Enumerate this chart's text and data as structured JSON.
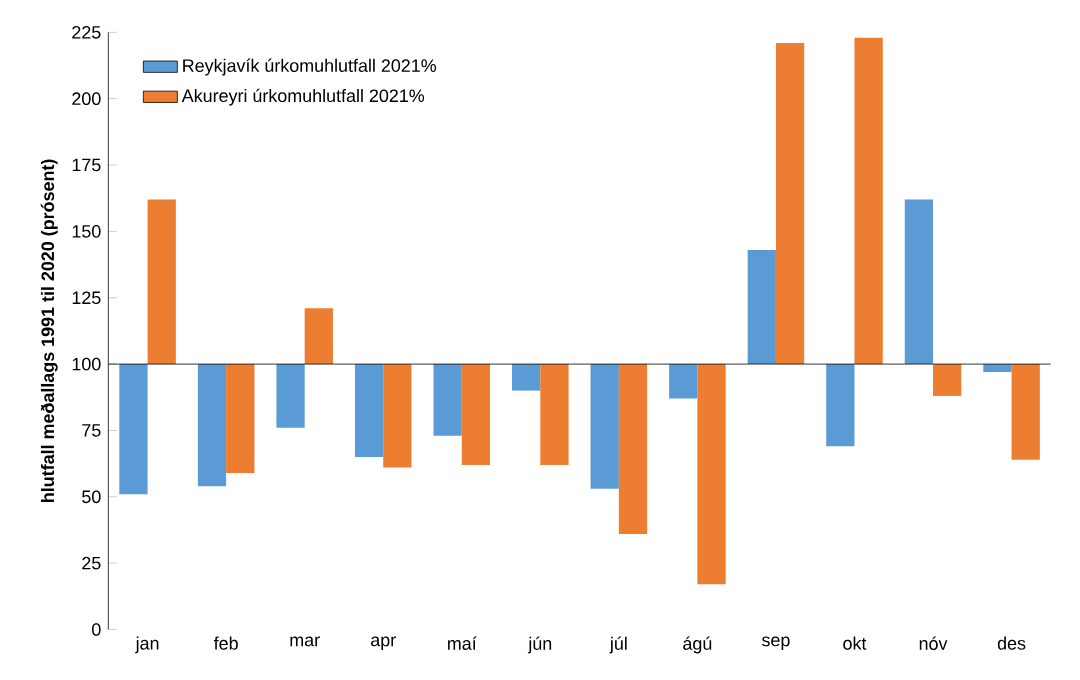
{
  "chart_data": {
    "type": "bar",
    "ylabel": "hlutfall  meðallags 1991 til 2020 (prósent)",
    "categories": [
      "jan",
      "feb",
      "mar",
      "apr",
      "maí",
      "jún",
      "júl",
      "ágú",
      "sep",
      "okt",
      "nóv",
      "des"
    ],
    "series": [
      {
        "name": "Reykjavík úrkomuhlutfall 2021%",
        "color": "#5b9bd5",
        "base": [
          100,
          100,
          100,
          100,
          100,
          100,
          100,
          100,
          100,
          100,
          100,
          100
        ],
        "values": [
          -49,
          -46,
          -24,
          -35,
          -27,
          -10,
          -47,
          -13,
          43,
          -31,
          62,
          -3
        ]
      },
      {
        "name": "Akureyri úrkomuhlutfall 2021%",
        "color": "#ed7d31",
        "base": [
          100,
          100,
          100,
          100,
          100,
          100,
          100,
          100,
          100,
          100,
          100,
          100
        ],
        "values": [
          62,
          -41,
          21,
          -39,
          -38,
          -38,
          -64,
          -83,
          121,
          123,
          -12,
          -36
        ]
      }
    ],
    "ylim": [
      0,
      225
    ],
    "yticks": [
      0,
      25,
      50,
      75,
      100,
      125,
      150,
      175,
      200,
      225
    ],
    "ref_lines": [
      {
        "axis": "y",
        "value": 100
      }
    ],
    "legend": "top left",
    "grid": false
  }
}
